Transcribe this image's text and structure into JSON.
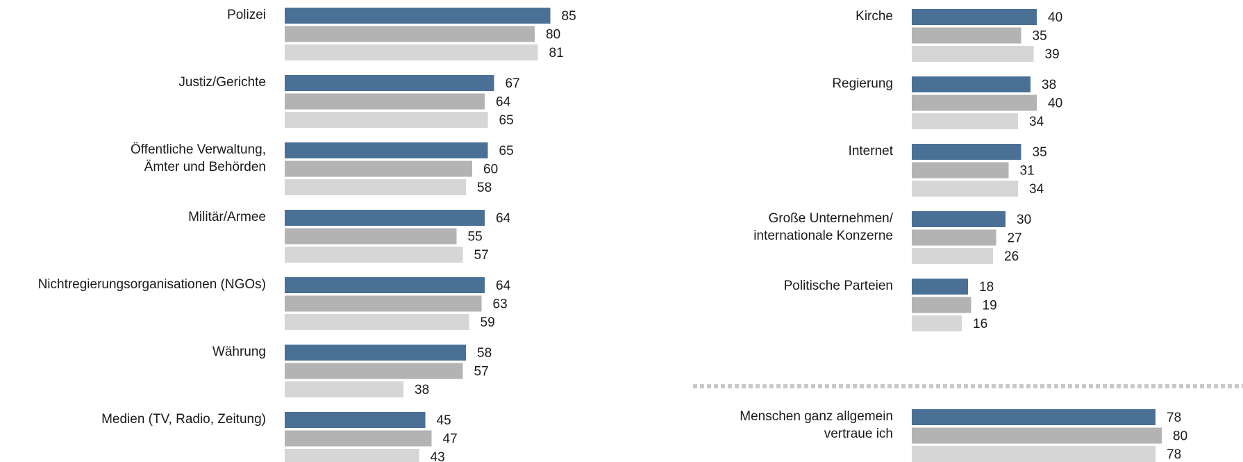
{
  "chart_data": {
    "type": "bar",
    "orientation": "horizontal",
    "colors": [
      "#4a7096",
      "#b3b3b3",
      "#d6d6d6"
    ],
    "separator_color": "#c8c8c8",
    "panels": [
      {
        "categories": [
          [
            "Polizei"
          ],
          [
            "Justiz/Gerichte"
          ],
          [
            "Öffentliche Verwaltung,",
            "Ämter und Behörden"
          ],
          [
            "Militär/Armee"
          ],
          [
            "Nichtregierungsorganisationen (NGOs)"
          ],
          [
            "Währung"
          ],
          [
            "Medien (TV, Radio, Zeitung)"
          ]
        ],
        "series": [
          {
            "values": [
              85,
              67,
              65,
              64,
              64,
              58,
              45
            ]
          },
          {
            "values": [
              80,
              64,
              60,
              55,
              63,
              57,
              47
            ]
          },
          {
            "values": [
              81,
              65,
              58,
              57,
              59,
              38,
              43
            ]
          }
        ]
      },
      {
        "categories": [
          [
            "Kirche"
          ],
          [
            "Regierung"
          ],
          [
            "Internet"
          ],
          [
            "Große Unternehmen/",
            "internationale Konzerne"
          ],
          [
            "Politische Parteien"
          ]
        ],
        "series": [
          {
            "values": [
              40,
              38,
              35,
              30,
              18
            ]
          },
          {
            "values": [
              35,
              40,
              31,
              27,
              19
            ]
          },
          {
            "values": [
              39,
              34,
              34,
              26,
              16
            ]
          }
        ]
      },
      {
        "categories": [
          [
            "Menschen ganz allgemein",
            "vertraue ich"
          ]
        ],
        "series": [
          {
            "values": [
              78
            ]
          },
          {
            "values": [
              80
            ]
          },
          {
            "values": [
              78
            ]
          }
        ]
      }
    ]
  }
}
